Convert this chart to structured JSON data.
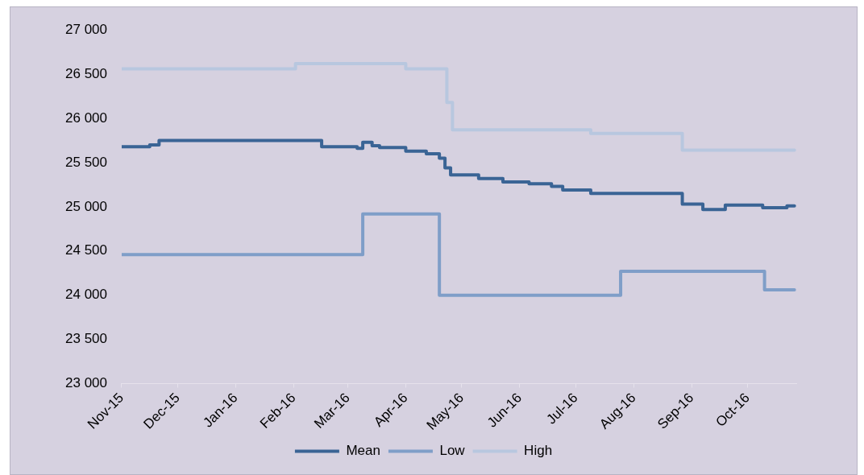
{
  "chart_data": {
    "type": "step",
    "legend": "bottom",
    "grid": false,
    "marker": "none",
    "line_style": "solid",
    "xlim": [
      "2015-11-01",
      "2016-10-27"
    ],
    "xticks": [
      {
        "value": "2015-11-01",
        "label": "Nov-15"
      },
      {
        "value": "2015-12-01",
        "label": "Dec-15"
      },
      {
        "value": "2016-01-01",
        "label": "Jan-16"
      },
      {
        "value": "2016-02-01",
        "label": "Feb-16"
      },
      {
        "value": "2016-03-01",
        "label": "Mar-16"
      },
      {
        "value": "2016-04-01",
        "label": "Apr-16"
      },
      {
        "value": "2016-05-01",
        "label": "May-16"
      },
      {
        "value": "2016-06-01",
        "label": "Jun-16"
      },
      {
        "value": "2016-07-01",
        "label": "Jul-16"
      },
      {
        "value": "2016-08-01",
        "label": "Aug-16"
      },
      {
        "value": "2016-09-01",
        "label": "Sep-16"
      },
      {
        "value": "2016-10-01",
        "label": "Oct-16"
      }
    ],
    "ylim": [
      23000,
      27000
    ],
    "yticks": [
      {
        "value": 23000,
        "label": "23 000"
      },
      {
        "value": 23500,
        "label": "23 500"
      },
      {
        "value": 24000,
        "label": "24 000"
      },
      {
        "value": 24500,
        "label": "24 500"
      },
      {
        "value": 25000,
        "label": "25 000"
      },
      {
        "value": 25500,
        "label": "25 500"
      },
      {
        "value": 26000,
        "label": "26 000"
      },
      {
        "value": 26500,
        "label": "26 500"
      },
      {
        "value": 27000,
        "label": "27 000"
      }
    ],
    "series": [
      {
        "name": "Mean",
        "color": "#3a6495",
        "x": [
          "2015-11-01",
          "2015-11-16",
          "2015-11-21",
          "2016-02-16",
          "2016-03-06",
          "2016-03-09",
          "2016-03-14",
          "2016-03-18",
          "2016-04-01",
          "2016-04-12",
          "2016-04-19",
          "2016-04-22",
          "2016-04-25",
          "2016-05-10",
          "2016-05-23",
          "2016-06-06",
          "2016-06-18",
          "2016-06-24",
          "2016-07-09",
          "2016-08-27",
          "2016-09-07",
          "2016-09-19",
          "2016-10-09",
          "2016-10-22",
          "2016-10-26"
        ],
        "values": [
          25680,
          25700,
          25750,
          25680,
          25660,
          25730,
          25690,
          25670,
          25630,
          25600,
          25550,
          25440,
          25360,
          25320,
          25280,
          25260,
          25230,
          25190,
          25150,
          25030,
          24970,
          25020,
          24990,
          25010,
          25010
        ]
      },
      {
        "name": "Low",
        "color": "#7f9ec8",
        "x": [
          "2015-11-01",
          "2016-03-09",
          "2016-04-19",
          "2016-07-25",
          "2016-10-10",
          "2016-10-26"
        ],
        "values": [
          24460,
          24920,
          24000,
          24270,
          24060,
          24060
        ]
      },
      {
        "name": "High",
        "color": "#b8c7df",
        "x": [
          "2015-11-01",
          "2016-02-02",
          "2016-04-01",
          "2016-04-23",
          "2016-04-26",
          "2016-07-09",
          "2016-08-27",
          "2016-10-26"
        ],
        "values": [
          26560,
          26620,
          26560,
          26180,
          25870,
          25830,
          25640,
          25640
        ]
      }
    ]
  }
}
